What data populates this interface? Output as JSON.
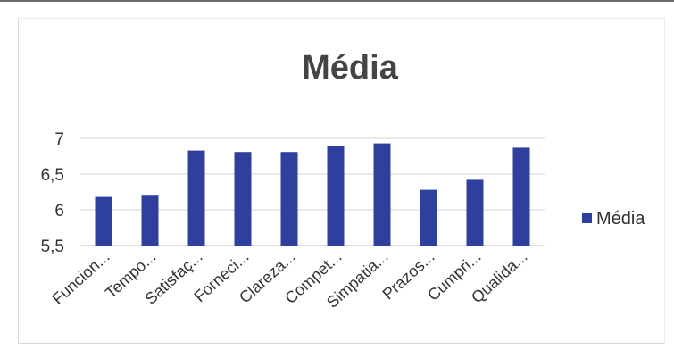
{
  "chart_data": {
    "type": "bar",
    "title": "Média",
    "categories": [
      "Funcion...",
      "Tempo...",
      "Satisfaç...",
      "Forneci...",
      "Clareza...",
      "Compet...",
      "Simpatia...",
      "Prazos...",
      "Cumpri...",
      "Qualida..."
    ],
    "series": [
      {
        "name": "Média",
        "values": [
          6.18,
          6.21,
          6.83,
          6.81,
          6.81,
          6.89,
          6.93,
          6.28,
          6.42,
          6.87
        ],
        "color": "#2f3f9e"
      }
    ],
    "ylim": [
      5.5,
      7
    ],
    "yticks": [
      "7",
      "6,5",
      "6",
      "5,5"
    ],
    "ytick_values": [
      7,
      6.5,
      6,
      5.5
    ],
    "grid": true,
    "legend_position": "right"
  }
}
